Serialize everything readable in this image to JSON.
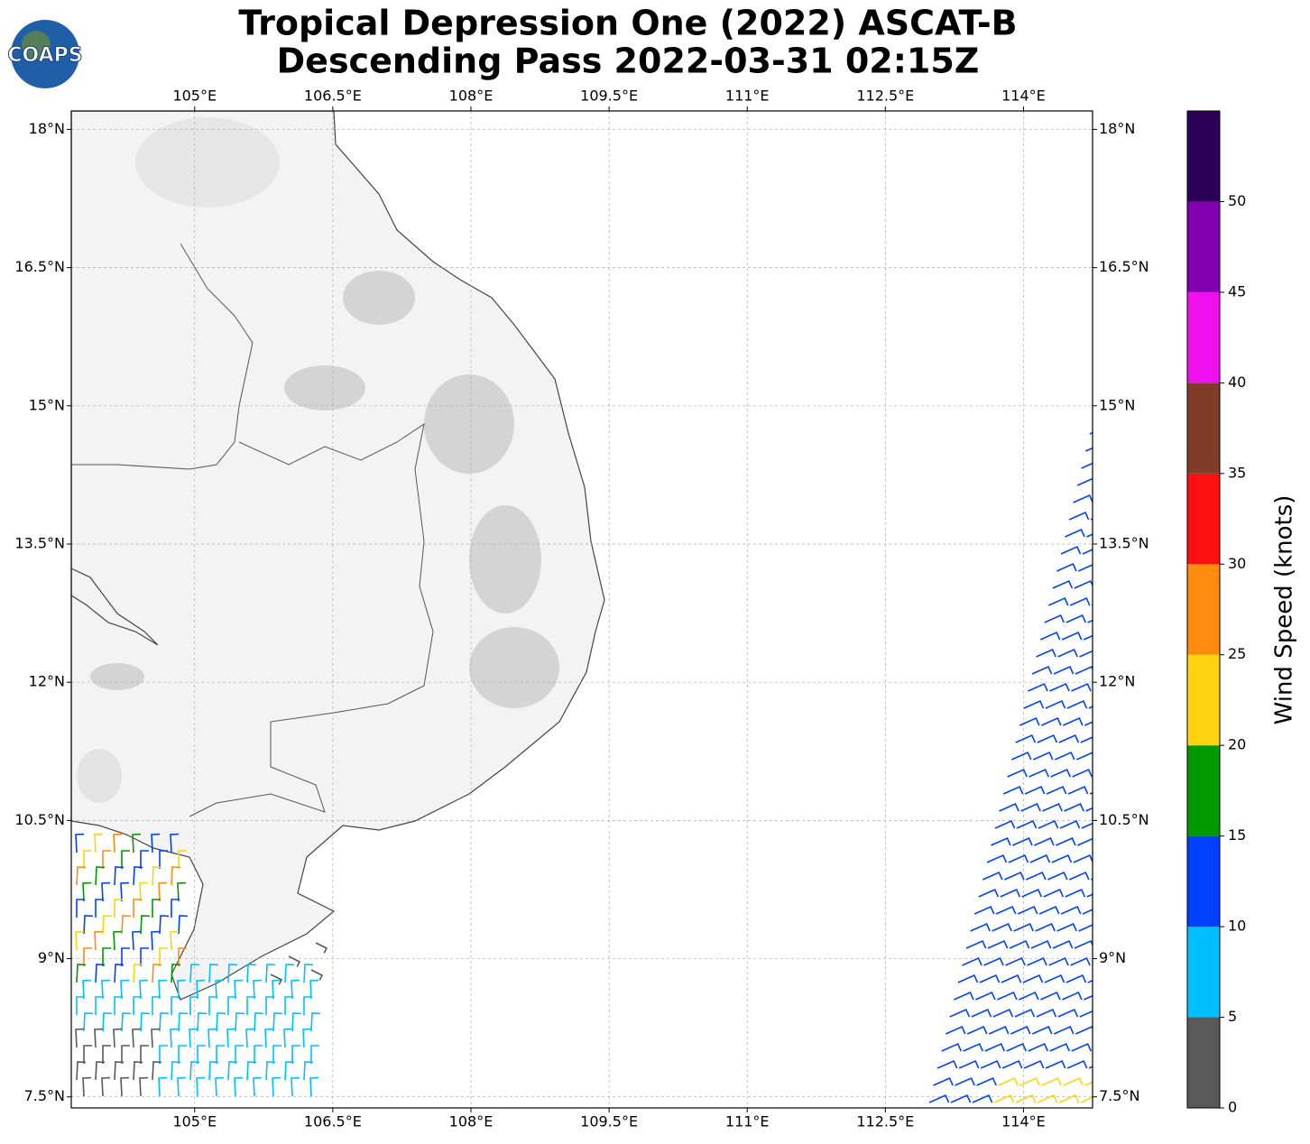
{
  "header": {
    "logo": "COAPS",
    "title_line1": "Tropical Depression One (2022) ASCAT-B",
    "title_line2": "Descending Pass 2022-03-31 02:15Z"
  },
  "map": {
    "lon_range": [
      103.66,
      114.75
    ],
    "lat_range": [
      7.38,
      18.2
    ],
    "lon_ticks": [
      {
        "value": 105,
        "label": "105°E"
      },
      {
        "value": 106.5,
        "label": "106.5°E"
      },
      {
        "value": 108,
        "label": "108°E"
      },
      {
        "value": 109.5,
        "label": "109.5°E"
      },
      {
        "value": 111,
        "label": "111°E"
      },
      {
        "value": 112.5,
        "label": "112.5°E"
      },
      {
        "value": 114,
        "label": "114°E"
      }
    ],
    "lat_ticks": [
      {
        "value": 18,
        "label": "18°N"
      },
      {
        "value": 16.5,
        "label": "16.5°N"
      },
      {
        "value": 15,
        "label": "15°N"
      },
      {
        "value": 13.5,
        "label": "13.5°N"
      },
      {
        "value": 12,
        "label": "12°N"
      },
      {
        "value": 10.5,
        "label": "10.5°N"
      },
      {
        "value": 9,
        "label": "9°N"
      },
      {
        "value": 7.5,
        "label": "7.5°N"
      }
    ]
  },
  "colorbar": {
    "label": "Wind Speed (knots)",
    "range": [
      0,
      55
    ],
    "ticks": [
      0,
      5,
      10,
      15,
      20,
      25,
      30,
      35,
      40,
      45,
      50
    ],
    "colors": [
      "#595959",
      "#00bfff",
      "#0040ff",
      "#009900",
      "#ffd20f",
      "#ff8c0f",
      "#ff1010",
      "#7f3c28",
      "#ee10ee",
      "#8000b0",
      "#2d0057"
    ]
  }
}
